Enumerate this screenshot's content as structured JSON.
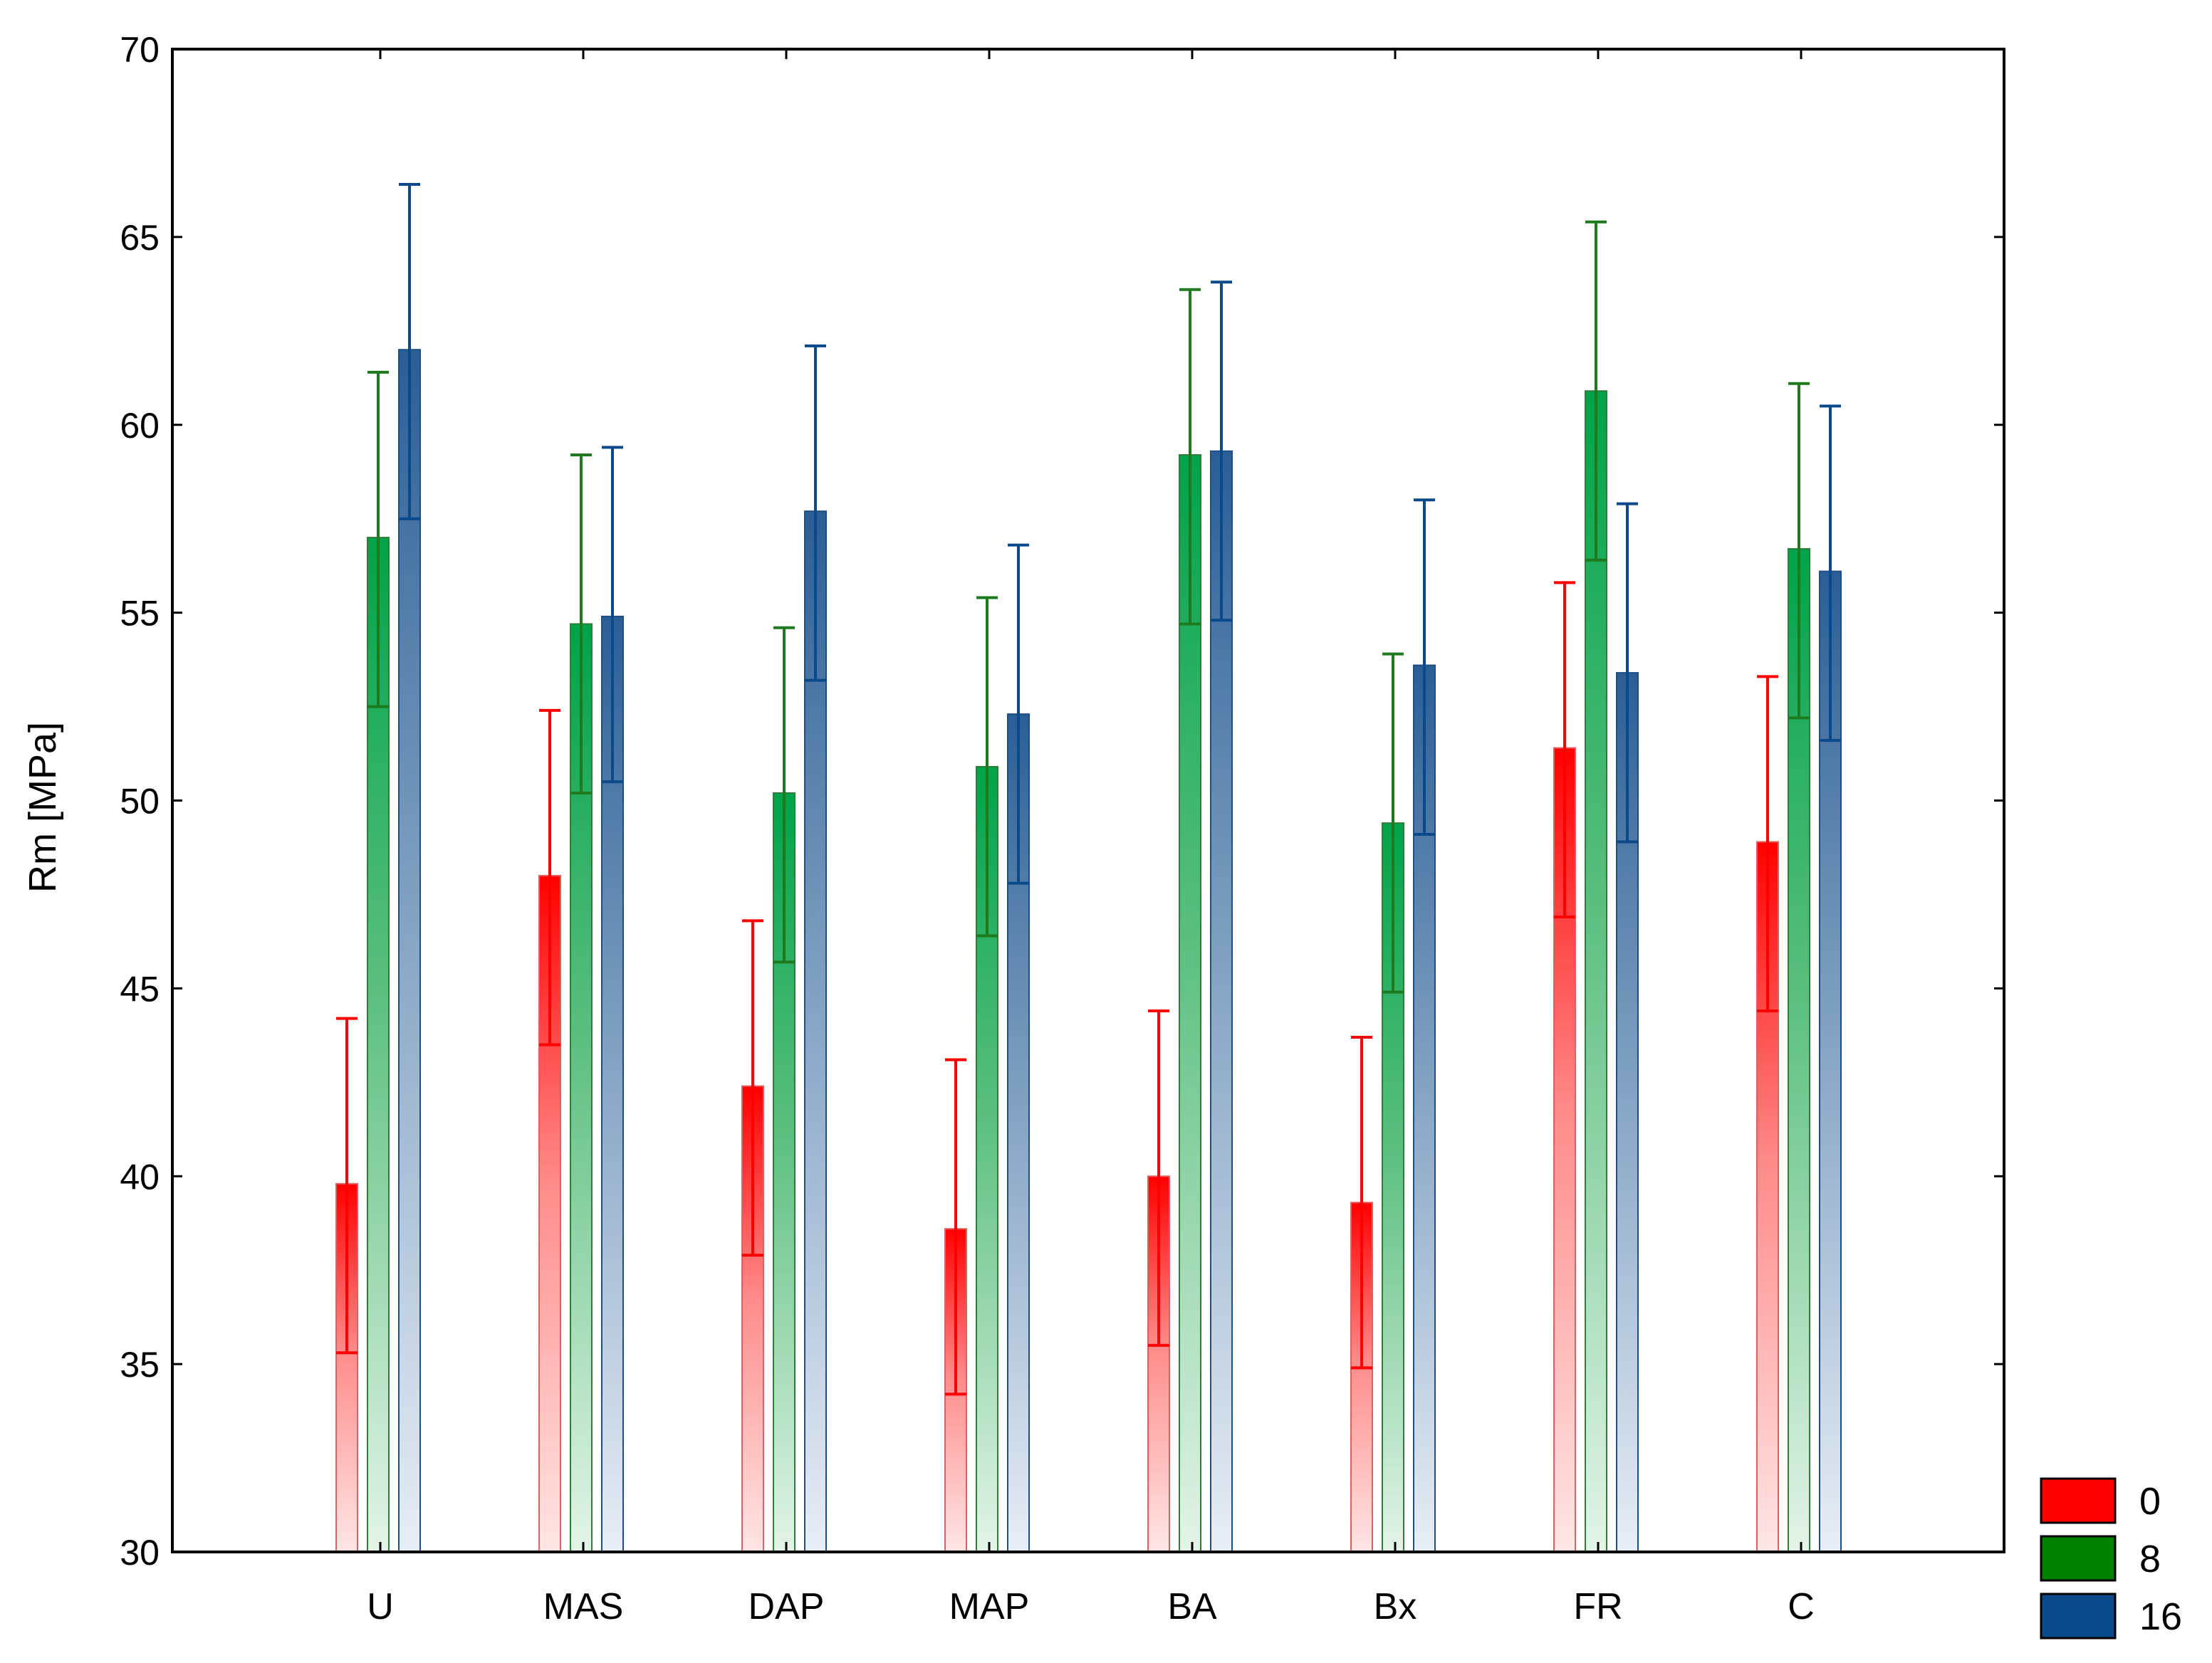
{
  "chart_data": {
    "type": "bar",
    "title": "",
    "xlabel": "",
    "ylabel": "Rm [MPa]",
    "ylim": [
      30,
      70
    ],
    "yticks": [
      30,
      35,
      40,
      45,
      50,
      55,
      60,
      65,
      70
    ],
    "categories": [
      "U",
      "MAS",
      "DAP",
      "MAP",
      "BA",
      "Bx",
      "FR",
      "C"
    ],
    "series": [
      {
        "name": "0",
        "color": "#ff0000",
        "values": [
          39.8,
          48.0,
          42.4,
          38.6,
          40.0,
          39.3,
          51.4,
          48.9
        ],
        "err_low": [
          35.3,
          43.5,
          37.9,
          34.2,
          35.5,
          34.9,
          46.9,
          44.4
        ],
        "err_high": [
          44.2,
          52.4,
          46.8,
          43.1,
          44.4,
          43.7,
          55.8,
          53.3
        ]
      },
      {
        "name": "8",
        "color": "#008000",
        "values": [
          57.0,
          54.7,
          50.2,
          50.9,
          59.2,
          49.4,
          60.9,
          56.7
        ],
        "err_low": [
          52.5,
          50.2,
          45.7,
          46.4,
          54.7,
          44.9,
          56.4,
          52.2
        ],
        "err_high": [
          61.4,
          59.2,
          54.6,
          55.4,
          63.6,
          53.9,
          65.4,
          61.1
        ]
      },
      {
        "name": "16",
        "color": "#0a4a8a",
        "values": [
          62.0,
          54.9,
          57.7,
          52.3,
          59.3,
          53.6,
          53.4,
          56.1
        ],
        "err_low": [
          57.5,
          50.5,
          53.2,
          47.8,
          54.8,
          49.1,
          48.9,
          51.6
        ],
        "err_high": [
          66.4,
          59.4,
          62.1,
          56.8,
          63.8,
          58.0,
          57.9,
          60.5
        ]
      }
    ],
    "legend": {
      "position": "bottom-right",
      "entries": [
        "0",
        "8",
        "16"
      ]
    }
  }
}
